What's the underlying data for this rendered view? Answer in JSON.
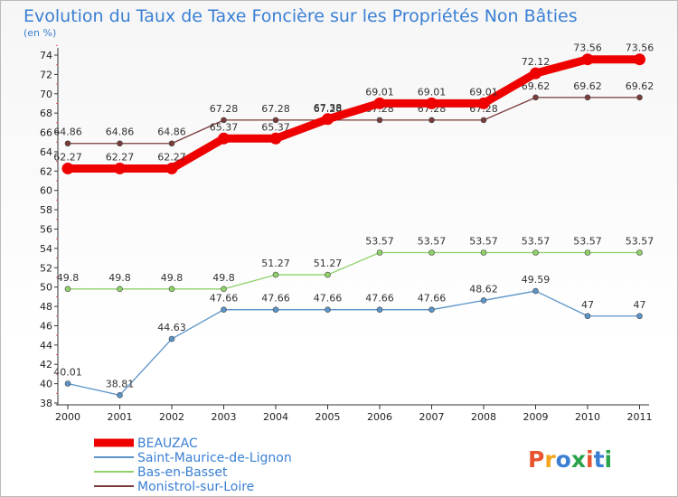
{
  "title": "Evolution du Taux de Taxe Foncière sur les Propriétés Non Bâties",
  "subtitle": "(en %)",
  "logo": {
    "text": "Proxiti",
    "colors": [
      "#e8542f",
      "#f2a51c",
      "#3a7fd4",
      "#2aa34a",
      "#e8542f",
      "#3a7fd4",
      "#2aa34a"
    ]
  },
  "chart_data": {
    "type": "line",
    "x": [
      "2000",
      "2001",
      "2002",
      "2003",
      "2004",
      "2005",
      "2006",
      "2007",
      "2008",
      "2009",
      "2010",
      "2011"
    ],
    "ylim": [
      38,
      74
    ],
    "yticks": [
      38,
      40,
      42,
      44,
      46,
      48,
      50,
      52,
      54,
      56,
      58,
      60,
      62,
      64,
      66,
      68,
      70,
      72,
      74
    ],
    "grid": false,
    "legend_position": "bottom-left",
    "series": [
      {
        "name": "BEAUZAC",
        "color": "#ee0000",
        "values": [
          62.27,
          62.27,
          62.27,
          65.37,
          65.37,
          67.38,
          69.01,
          69.01,
          69.01,
          72.12,
          73.56,
          73.56
        ],
        "labels": [
          "62.27",
          "62.27",
          "62.27",
          "65.37",
          "65.37",
          "67.38",
          "69.01",
          "69.01",
          "69.01",
          "72.12",
          "73.56",
          "73.56"
        ]
      },
      {
        "name": "Saint-Maurice-de-Lignon",
        "color": "#5b94c8",
        "values": [
          40.01,
          38.81,
          44.63,
          47.66,
          47.66,
          47.66,
          47.66,
          47.66,
          48.62,
          49.59,
          47,
          47
        ],
        "labels": [
          "40.01",
          "38.81",
          "44.63",
          "47.66",
          "47.66",
          "47.66",
          "47.66",
          "47.66",
          "48.62",
          "49.59",
          "47",
          "47"
        ]
      },
      {
        "name": "Bas-en-Basset",
        "color": "#8fd16a",
        "values": [
          49.8,
          49.8,
          49.8,
          49.8,
          51.27,
          51.27,
          53.57,
          53.57,
          53.57,
          53.57,
          53.57,
          53.57
        ],
        "labels": [
          "49.8",
          "49.8",
          "49.8",
          "49.8",
          "51.27",
          "51.27",
          "53.57",
          "53.57",
          "53.57",
          "53.57",
          "53.57",
          "53.57"
        ]
      },
      {
        "name": "Monistrol-sur-Loire",
        "color": "#7a3b3b",
        "values": [
          64.86,
          64.86,
          64.86,
          67.28,
          67.28,
          67.28,
          67.28,
          67.28,
          67.28,
          69.62,
          69.62,
          69.62
        ],
        "labels": [
          "64.86",
          "64.86",
          "64.86",
          "67.28",
          "67.28",
          "67.28",
          "67.28",
          "67.28",
          "67.28",
          "69.62",
          "69.62",
          "69.62"
        ]
      }
    ]
  }
}
